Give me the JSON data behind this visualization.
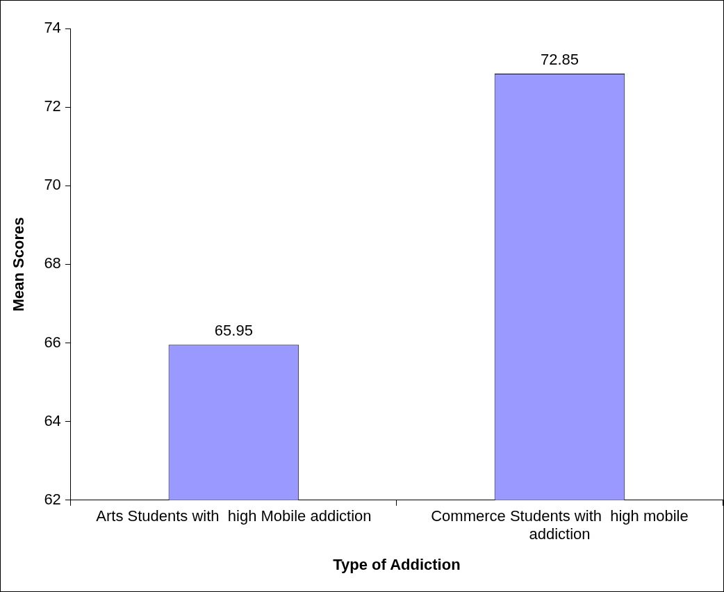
{
  "chart_data": {
    "type": "bar",
    "xlabel": "Type of Addiction",
    "ylabel": "Mean Scores",
    "categories": [
      "Arts Students with  high Mobile addiction",
      "Commerce Students with  high mobile addiction"
    ],
    "values": [
      65.95,
      72.85
    ],
    "color": "#9999ff",
    "ylim": [
      62,
      74
    ],
    "yticks": [
      62,
      64,
      66,
      68,
      70,
      72,
      74
    ],
    "data_labels": true,
    "grid": false,
    "legend": false
  }
}
